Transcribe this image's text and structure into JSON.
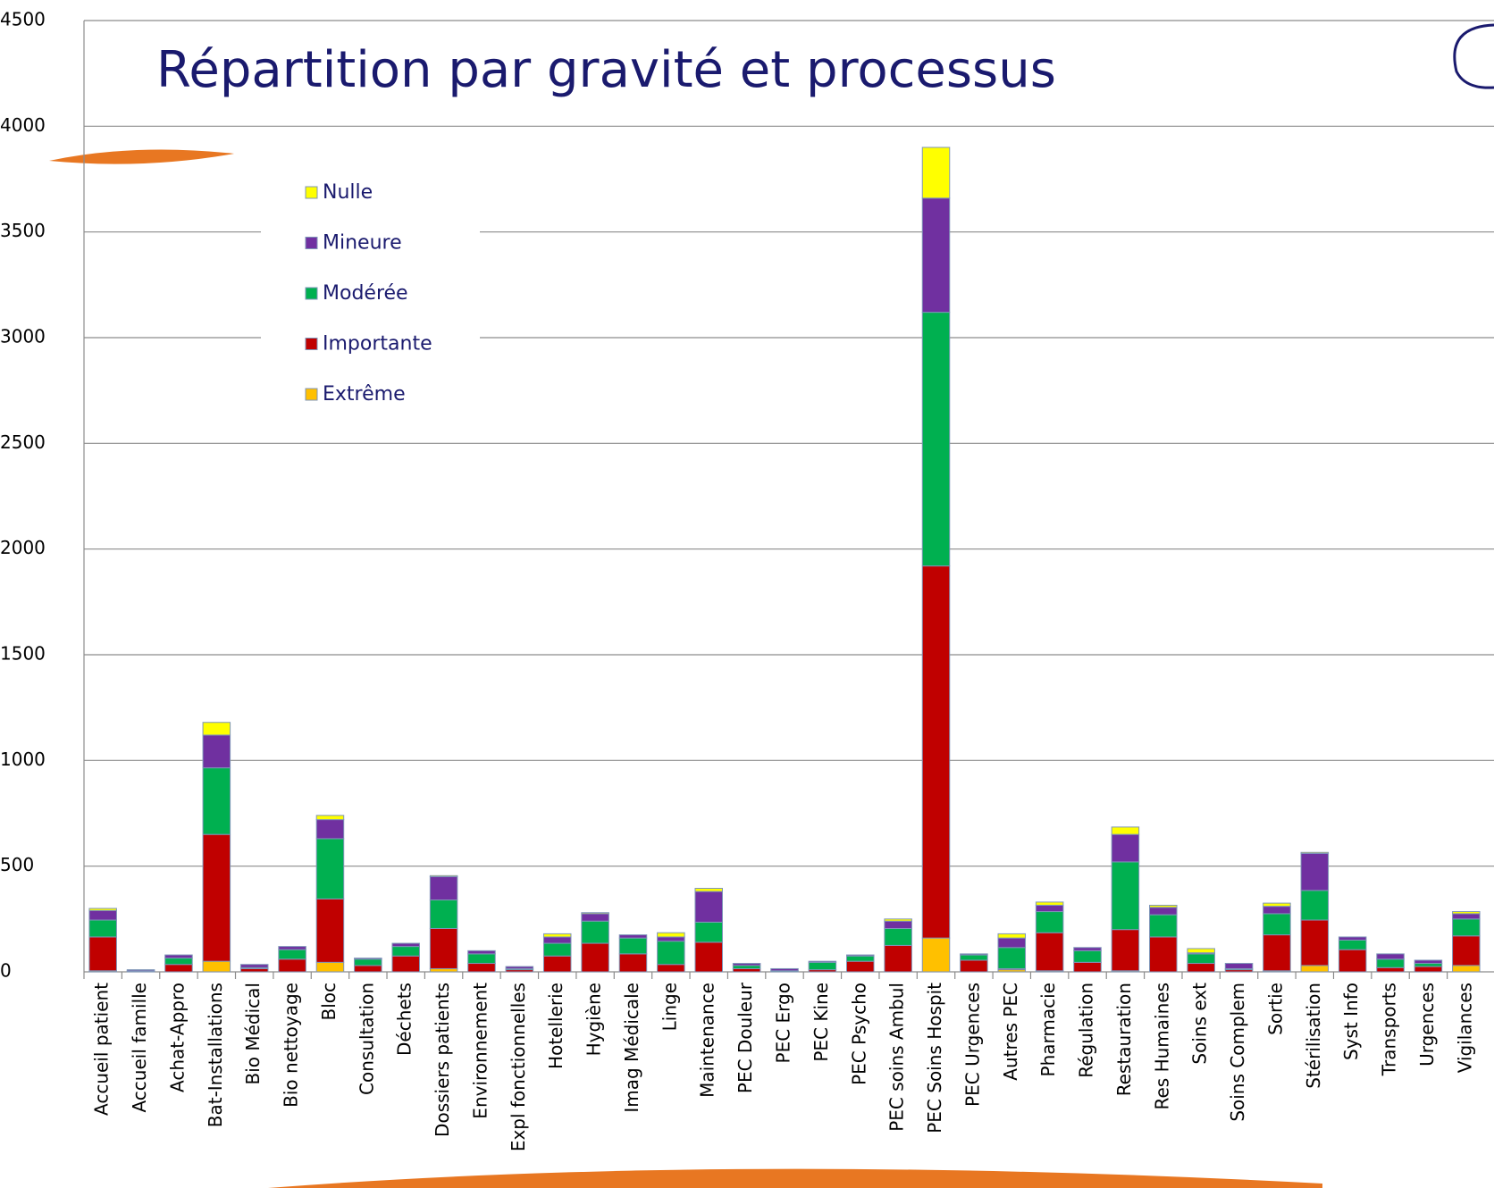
{
  "chart_data": {
    "type": "stacked-bar",
    "title": "Répartition par gravité et processus",
    "categories": [
      "Accueil patient",
      "Accueil famille",
      "Achat-Appro",
      "Bat-Installations",
      "Bio Médical",
      "Bio nettoyage",
      "Bloc",
      "Consultation",
      "Déchets",
      "Dossiers patients",
      "Environnement",
      "Expl fonctionnelles",
      "Hotellerie",
      "Hygiène",
      "Imag Médicale",
      "Linge",
      "Maintenance",
      "PEC Douleur",
      "PEC Ergo",
      "PEC Kine",
      "PEC Psycho",
      "PEC soins Ambul",
      "PEC Soins Hospit",
      "PEC Urgences",
      "Autres PEC",
      "Pharmacie",
      "Régulation",
      "Restauration",
      "Res Humaines",
      "Soins ext",
      "Soins Complem",
      "Sortie",
      "Stérilisation",
      "Syst Info",
      "Transports",
      "Urgences",
      "Vigilances"
    ],
    "series": [
      {
        "name": "Extrême",
        "color": "#FFC000",
        "values": [
          5,
          0,
          0,
          50,
          0,
          0,
          45,
          0,
          0,
          15,
          0,
          0,
          0,
          0,
          0,
          0,
          0,
          0,
          0,
          0,
          0,
          0,
          160,
          0,
          10,
          5,
          0,
          5,
          0,
          0,
          0,
          5,
          30,
          0,
          0,
          0,
          30
        ]
      },
      {
        "name": "Importante",
        "color": "#C00000",
        "values": [
          160,
          3,
          35,
          600,
          15,
          60,
          300,
          30,
          75,
          190,
          40,
          10,
          75,
          135,
          85,
          35,
          140,
          15,
          0,
          10,
          50,
          125,
          1760,
          55,
          5,
          180,
          45,
          195,
          165,
          40,
          10,
          170,
          215,
          105,
          20,
          25,
          140
        ]
      },
      {
        "name": "Modérée",
        "color": "#00B050",
        "values": [
          80,
          2,
          30,
          315,
          5,
          45,
          285,
          30,
          45,
          135,
          45,
          5,
          60,
          105,
          75,
          110,
          95,
          15,
          5,
          35,
          25,
          80,
          1200,
          25,
          100,
          100,
          55,
          320,
          105,
          45,
          5,
          100,
          140,
          45,
          40,
          15,
          80
        ]
      },
      {
        "name": "Mineure",
        "color": "#7030A0",
        "values": [
          45,
          5,
          15,
          155,
          15,
          15,
          90,
          5,
          15,
          110,
          15,
          10,
          30,
          35,
          15,
          20,
          145,
          10,
          10,
          5,
          5,
          35,
          540,
          5,
          45,
          30,
          15,
          130,
          35,
          5,
          25,
          35,
          175,
          15,
          25,
          15,
          25
        ]
      },
      {
        "name": "Nulle",
        "color": "#FFFF00",
        "values": [
          10,
          0,
          0,
          60,
          0,
          0,
          20,
          0,
          0,
          5,
          0,
          0,
          15,
          5,
          0,
          20,
          15,
          0,
          0,
          0,
          0,
          10,
          240,
          0,
          20,
          15,
          0,
          35,
          10,
          20,
          0,
          15,
          5,
          0,
          0,
          0,
          10
        ]
      }
    ],
    "ylim": [
      0,
      4500
    ],
    "yticks": [
      0,
      500,
      1000,
      1500,
      2000,
      2500,
      3000,
      3500,
      4000,
      4500
    ],
    "grid": true
  }
}
